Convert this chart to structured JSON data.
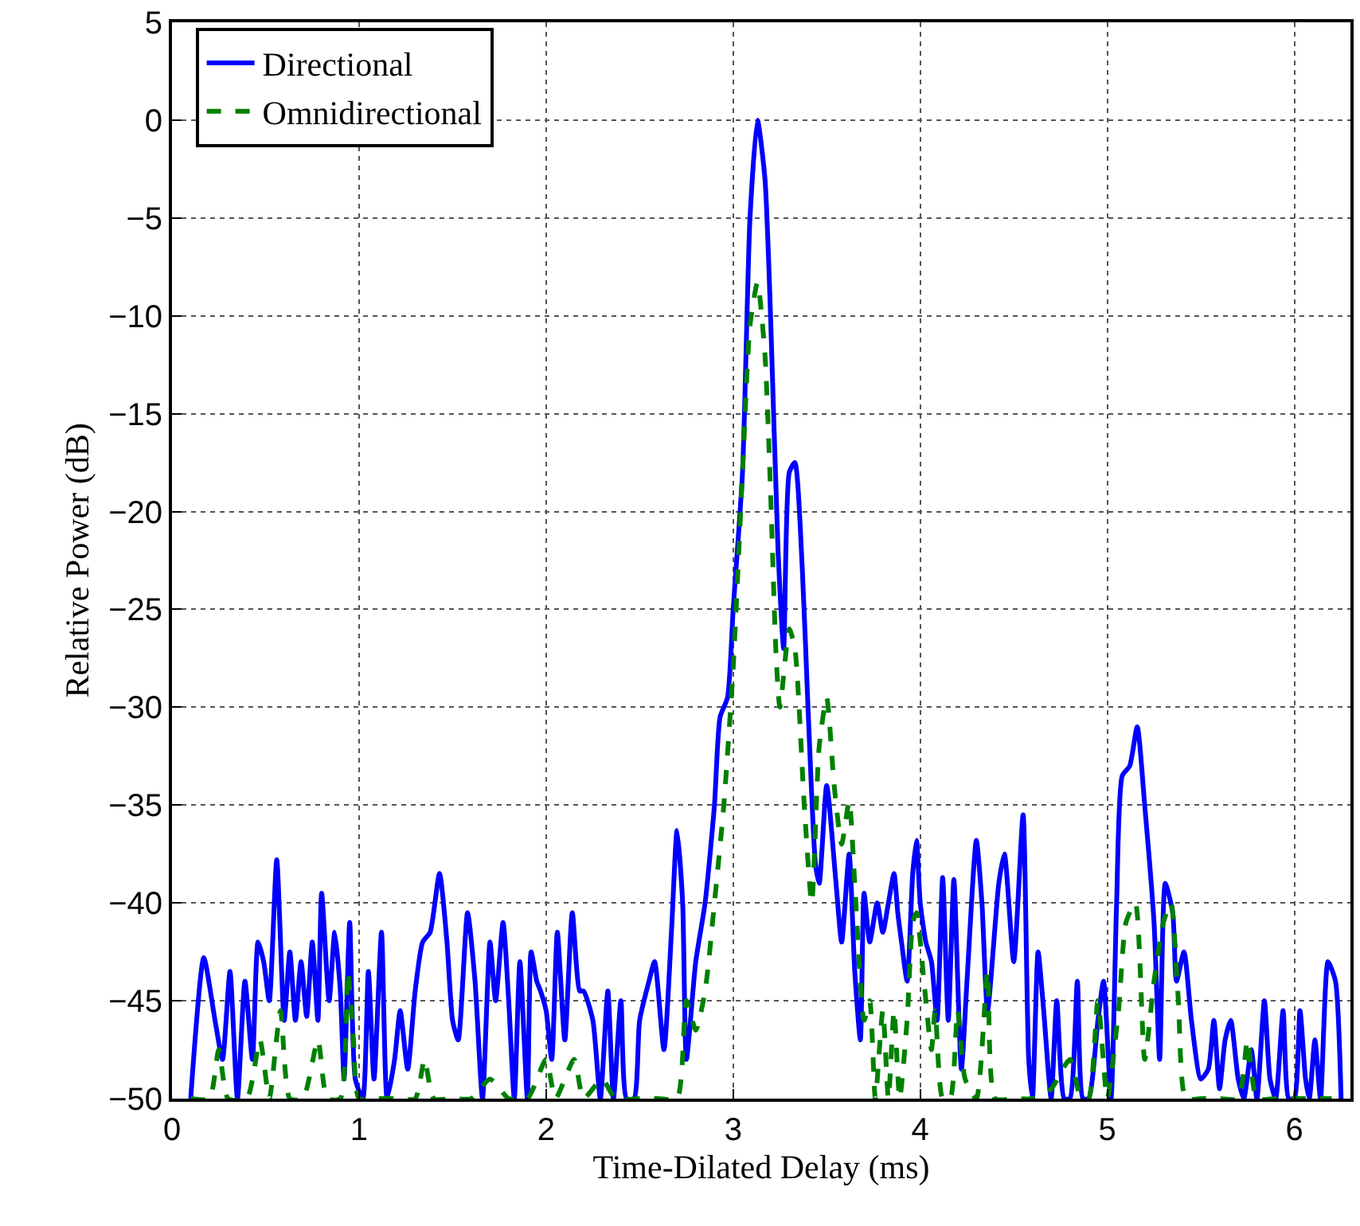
{
  "chart_data": {
    "type": "line",
    "xlabel": "Time-Dilated Delay (ms)",
    "ylabel": "Relative Power (dB)",
    "xlim": [
      0,
      6.3
    ],
    "ylim": [
      -50,
      5
    ],
    "xticks": [
      0,
      1,
      2,
      3,
      4,
      5,
      6
    ],
    "yticks": [
      -50,
      -45,
      -40,
      -35,
      -30,
      -25,
      -20,
      -15,
      -10,
      -5,
      0,
      5
    ],
    "grid": true,
    "legend": "top left",
    "marker": "none",
    "series": [
      {
        "name": "Directional",
        "color": "#0000ff",
        "line_style": "solid",
        "x": [
          0.1,
          0.17,
          0.23,
          0.27,
          0.31,
          0.35,
          0.39,
          0.43,
          0.46,
          0.49,
          0.52,
          0.56,
          0.6,
          0.63,
          0.66,
          0.69,
          0.72,
          0.75,
          0.78,
          0.8,
          0.84,
          0.87,
          0.9,
          0.92,
          0.95,
          0.98,
          1.02,
          1.05,
          1.08,
          1.12,
          1.15,
          1.19,
          1.22,
          1.26,
          1.3,
          1.34,
          1.38,
          1.43,
          1.47,
          1.5,
          1.53,
          1.58,
          1.62,
          1.66,
          1.7,
          1.73,
          1.77,
          1.8,
          1.83,
          1.86,
          1.9,
          1.92,
          1.95,
          1.97,
          2.0,
          2.03,
          2.06,
          2.1,
          2.14,
          2.18,
          2.2,
          2.25,
          2.29,
          2.33,
          2.36,
          2.4,
          2.43,
          2.47,
          2.5,
          2.55,
          2.58,
          2.63,
          2.67,
          2.7,
          2.73,
          2.75,
          2.8,
          2.85,
          2.9,
          2.93,
          2.97,
          3.0,
          3.05,
          3.09,
          3.13,
          3.17,
          3.2,
          3.24,
          3.27,
          3.3,
          3.33,
          3.37,
          3.4,
          3.44,
          3.46,
          3.5,
          3.55,
          3.58,
          3.62,
          3.65,
          3.68,
          3.7,
          3.73,
          3.77,
          3.8,
          3.83,
          3.86,
          3.88,
          3.9,
          3.93,
          3.96,
          3.98,
          4.0,
          4.03,
          4.06,
          4.09,
          4.12,
          4.15,
          4.18,
          4.22,
          4.25,
          4.3,
          4.33,
          4.36,
          4.42,
          4.45,
          4.5,
          4.55,
          4.58,
          4.6,
          4.63,
          4.66,
          4.7,
          4.73,
          4.77,
          4.8,
          4.84,
          4.87,
          4.9,
          4.95,
          4.98,
          5.02,
          5.05,
          5.08,
          5.12,
          5.16,
          5.2,
          5.25,
          5.28,
          5.31,
          5.35,
          5.37,
          5.41,
          5.45,
          5.5,
          5.54,
          5.57,
          5.6,
          5.63,
          5.66,
          5.7,
          5.73,
          5.77,
          5.8,
          5.84,
          5.87,
          5.9,
          5.94,
          5.97,
          6.0,
          6.03,
          6.06,
          6.08,
          6.11,
          6.14,
          6.18,
          6.22,
          6.25
        ],
        "values": [
          -50,
          -42.8,
          -46,
          -48,
          -43.5,
          -50,
          -44,
          -48,
          -42,
          -43,
          -45,
          -37.8,
          -46,
          -42.5,
          -46,
          -43,
          -45.8,
          -42,
          -46,
          -39.5,
          -45,
          -41.5,
          -44.5,
          -49,
          -41,
          -49,
          -50,
          -43.5,
          -49,
          -41.5,
          -50,
          -48,
          -45.5,
          -48.5,
          -44.5,
          -42,
          -41.5,
          -38.5,
          -42,
          -46,
          -47,
          -40.5,
          -44,
          -50,
          -42,
          -45,
          -41,
          -45,
          -50,
          -43,
          -50,
          -42.5,
          -44,
          -44.5,
          -45.5,
          -48,
          -41.5,
          -47,
          -40.5,
          -44.5,
          -44.5,
          -46,
          -50,
          -44.5,
          -50,
          -45,
          -50,
          -50,
          -46,
          -44,
          -43,
          -47.5,
          -41.5,
          -36.3,
          -40,
          -48,
          -43,
          -40,
          -35,
          -30.5,
          -29.5,
          -25,
          -18,
          -5,
          0,
          -3,
          -10,
          -22,
          -27,
          -18,
          -17.5,
          -23,
          -30,
          -38,
          -39,
          -34,
          -39,
          -42,
          -37.5,
          -43.5,
          -47,
          -39.5,
          -42,
          -40,
          -41.5,
          -40,
          -38.5,
          -40.5,
          -42,
          -44,
          -38.5,
          -36.8,
          -40,
          -42,
          -43,
          -46,
          -38.7,
          -46,
          -38.8,
          -48.5,
          -44,
          -36.8,
          -40,
          -45.5,
          -39,
          -37.5,
          -43,
          -35.5,
          -48,
          -50,
          -42.5,
          -45.5,
          -50,
          -45,
          -50,
          -50,
          -44,
          -50,
          -50,
          -46,
          -44,
          -50,
          -40,
          -33.5,
          -33,
          -31,
          -35,
          -41,
          -48,
          -39,
          -40.5,
          -44,
          -42.5,
          -46,
          -49,
          -48.5,
          -46,
          -49.5,
          -47,
          -46,
          -49,
          -50,
          -47.5,
          -50,
          -45,
          -49,
          -50,
          -45.5,
          -50,
          -50,
          -45.5,
          -49,
          -50,
          -47,
          -50,
          -43,
          -44,
          -50
        ]
      },
      {
        "name": "Omnidirectional",
        "color": "#008000",
        "line_style": "dashed",
        "x": [
          0.1,
          0.2,
          0.25,
          0.3,
          0.4,
          0.47,
          0.52,
          0.58,
          0.63,
          0.7,
          0.78,
          0.83,
          0.9,
          0.94,
          0.97,
          1.0,
          1.1,
          1.2,
          1.3,
          1.35,
          1.4,
          1.5,
          1.6,
          1.7,
          1.8,
          1.9,
          2.0,
          2.05,
          2.15,
          2.2,
          2.3,
          2.37,
          2.5,
          2.6,
          2.7,
          2.75,
          2.8,
          2.85,
          2.9,
          2.95,
          3.0,
          3.05,
          3.09,
          3.13,
          3.17,
          3.2,
          3.23,
          3.25,
          3.3,
          3.33,
          3.38,
          3.42,
          3.46,
          3.5,
          3.54,
          3.58,
          3.62,
          3.65,
          3.7,
          3.73,
          3.76,
          3.8,
          3.83,
          3.86,
          3.89,
          3.93,
          3.96,
          3.98,
          4.02,
          4.06,
          4.08,
          4.12,
          4.16,
          4.2,
          4.24,
          4.3,
          4.36,
          4.4,
          4.5,
          4.6,
          4.7,
          4.8,
          4.86,
          4.9,
          4.95,
          5.0,
          5.06,
          5.1,
          5.15,
          5.2,
          5.25,
          5.3,
          5.34,
          5.38,
          5.42,
          5.5,
          5.6,
          5.7,
          5.75,
          5.8,
          5.9,
          6.0,
          6.1,
          6.2
        ],
        "values": [
          -50,
          -50,
          -47.5,
          -50,
          -50,
          -47,
          -50,
          -45.5,
          -50,
          -50,
          -47,
          -50,
          -50,
          -43.5,
          -47,
          -50,
          -50,
          -50,
          -50,
          -48,
          -50,
          -50,
          -50,
          -49,
          -50,
          -50,
          -48,
          -50,
          -48,
          -50,
          -49,
          -50,
          -50,
          -50,
          -50,
          -45,
          -46.5,
          -44.5,
          -40,
          -35,
          -28,
          -18,
          -10.5,
          -8.3,
          -12,
          -19,
          -27.5,
          -30,
          -26,
          -27,
          -35,
          -40,
          -32,
          -29.5,
          -34,
          -37,
          -34.8,
          -39,
          -46,
          -45,
          -50,
          -45.5,
          -50,
          -45.5,
          -50,
          -46,
          -41,
          -40.5,
          -44,
          -47.5,
          -45.5,
          -50,
          -50,
          -45.5,
          -49,
          -50,
          -43.5,
          -50,
          -50,
          -50,
          -49.5,
          -48,
          -50,
          -50,
          -45,
          -50,
          -45.5,
          -41,
          -40,
          -48,
          -44,
          -41,
          -40,
          -45,
          -50,
          -50,
          -50,
          -50,
          -47,
          -50,
          -50,
          -50,
          -50,
          -50
        ]
      }
    ]
  }
}
